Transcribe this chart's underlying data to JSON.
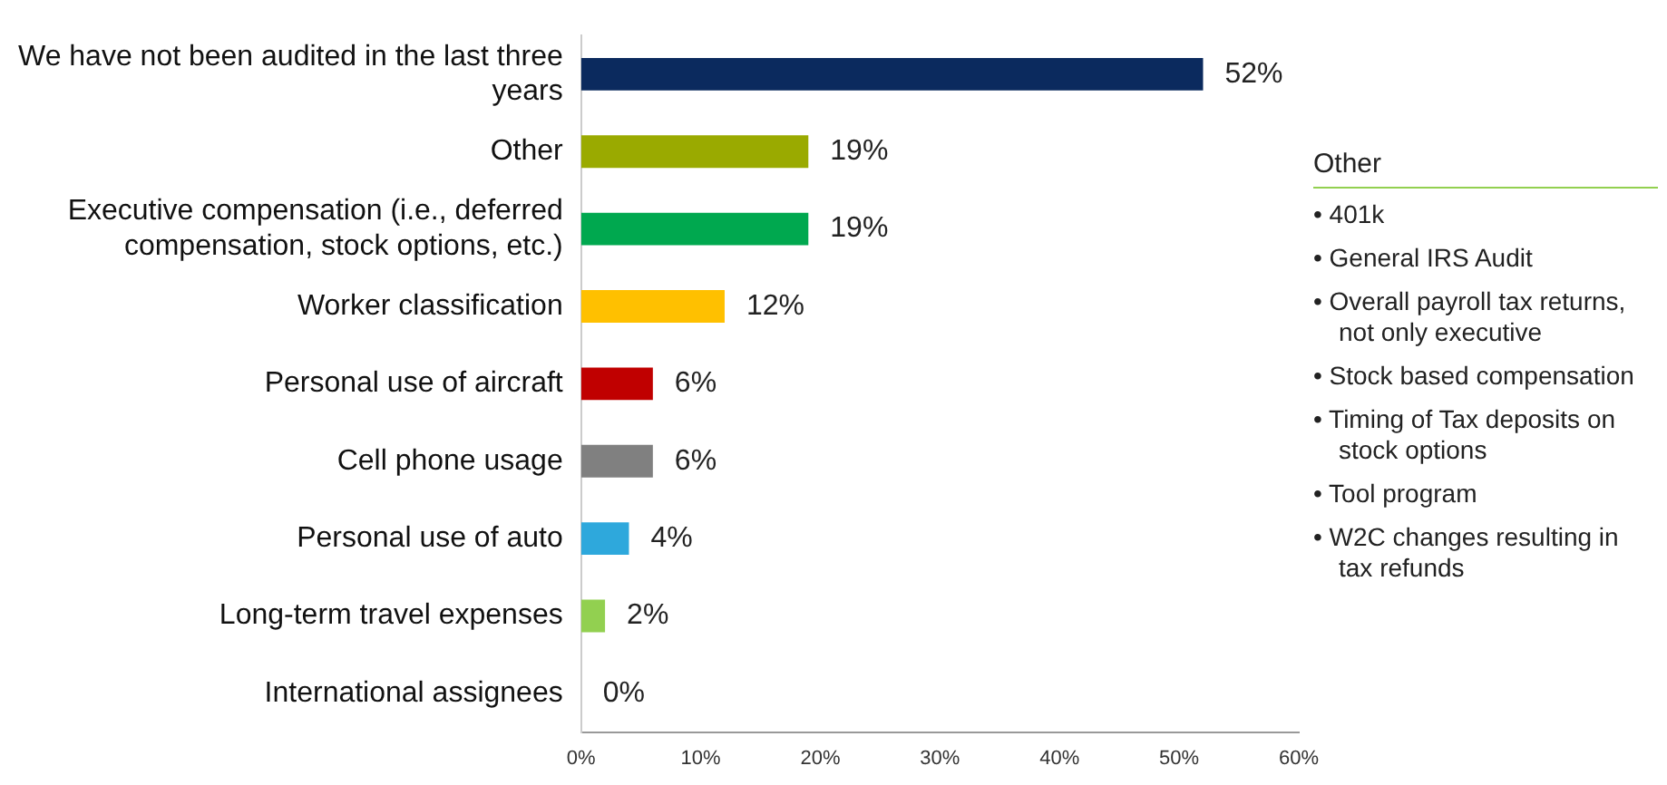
{
  "chart_data": {
    "type": "bar",
    "orientation": "horizontal",
    "categories": [
      "We have not been audited in the last three years",
      "Other",
      "Executive compensation (i.e., deferred compensation, stock options, etc.)",
      "Worker classification",
      "Personal use of aircraft",
      "Cell phone usage",
      "Personal use of auto",
      "Long-term travel expenses",
      "International assignees"
    ],
    "values": [
      52,
      19,
      19,
      12,
      6,
      6,
      4,
      2,
      0
    ],
    "colors": [
      "#0b2a5e",
      "#9aaa00",
      "#00a84f",
      "#ffc000",
      "#c00000",
      "#808080",
      "#2ea8dc",
      "#92d050",
      "#92d050"
    ],
    "value_labels": [
      "52%",
      "19%",
      "19%",
      "12%",
      "6%",
      "6%",
      "4%",
      "2%",
      "0%"
    ],
    "xlim": [
      0,
      60
    ],
    "xticks": [
      {
        "value": 0,
        "label": "0%"
      },
      {
        "value": 10,
        "label": "10%"
      },
      {
        "value": 20,
        "label": "20%"
      },
      {
        "value": 30,
        "label": "30%"
      },
      {
        "value": 40,
        "label": "40%"
      },
      {
        "value": 50,
        "label": "50%"
      },
      {
        "value": 60,
        "label": "60%"
      }
    ],
    "grid": false,
    "legend": false,
    "annotations": [
      "Other",
      "• 401k",
      "• General IRS Audit",
      "• Overall payroll tax returns, not only executive",
      "• Stock based compensation",
      "• Timing of Tax deposits on stock options",
      "• Tool program",
      "• W2C changes resulting in tax refunds"
    ]
  }
}
